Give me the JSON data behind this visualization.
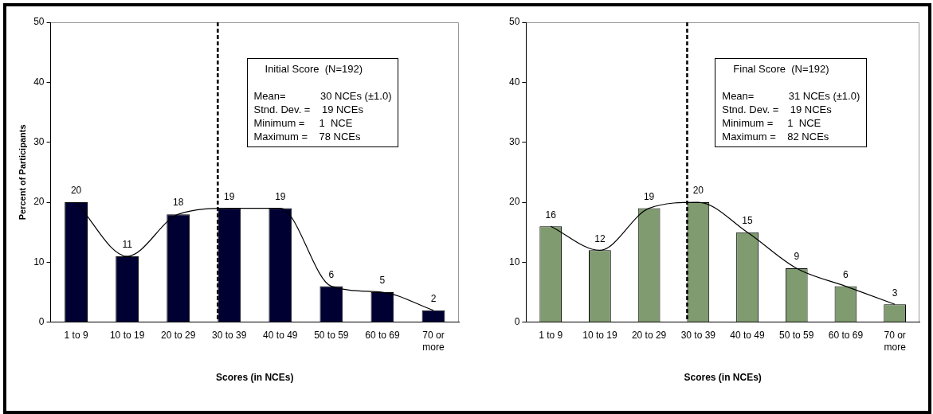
{
  "chart_data": [
    {
      "type": "bar",
      "categories": [
        "1 to 9",
        "10 to 19",
        "20 to 29",
        "30 to 39",
        "40 to 49",
        "50 to 59",
        "60 to 69",
        "70 or more"
      ],
      "series": [
        {
          "color": "#000033",
          "values": [
            20,
            11,
            18,
            19,
            19,
            6,
            5,
            2
          ],
          "value_labels": [
            "20",
            "11",
            "18",
            "19",
            "19",
            "6",
            "5",
            "2"
          ]
        },
        {
          "type": "line",
          "color": "#000000",
          "marker": "none",
          "values": [
            20,
            11,
            18,
            19,
            19,
            6,
            5,
            2
          ]
        }
      ],
      "xlabel": "Scores (in NCEs)",
      "ylabel": "Percent of Participants",
      "ylim": [
        0,
        50
      ],
      "yticks": [
        0,
        10,
        20,
        30,
        40,
        50
      ],
      "grid": false,
      "legend": false,
      "ref_lines": [
        {
          "axis": "x",
          "value": "30 to 39",
          "color": "#000000",
          "line_style": "dashed"
        }
      ],
      "annotations": [
        "Initial Score  (N=192)",
        "Mean=            30 NCEs (±1.0)",
        "Stnd. Dev. =    19 NCEs",
        "Minimum =     1  NCE",
        "Maximum =    78 NCEs"
      ]
    },
    {
      "type": "bar",
      "categories": [
        "1 to 9",
        "10 to 19",
        "20 to 29",
        "30 to 39",
        "40 to 49",
        "50 to 59",
        "60 to 69",
        "70 or more"
      ],
      "series": [
        {
          "color": "#7f9b6f",
          "values": [
            16,
            12,
            19,
            20,
            15,
            9,
            6,
            3
          ],
          "value_labels": [
            "16",
            "12",
            "19",
            "20",
            "15",
            "9",
            "6",
            "3"
          ]
        },
        {
          "type": "line",
          "color": "#000000",
          "marker": "none",
          "values": [
            16,
            12,
            19,
            20,
            15,
            9,
            6,
            3
          ]
        }
      ],
      "xlabel": "Scores (in NCEs)",
      "ylim": [
        0,
        50
      ],
      "yticks": [
        0,
        10,
        20,
        30,
        40,
        50
      ],
      "grid": false,
      "legend": false,
      "ref_lines": [
        {
          "axis": "x",
          "value": "30 to 39",
          "color": "#000000",
          "line_style": "dashed"
        }
      ],
      "annotations": [
        "Final Score  (N=192)",
        "Mean=            31 NCEs (±1.0)",
        "Stnd. Dev. =    19 NCEs",
        "Minimum =     1  NCE",
        "Maximum =    82 NCEs"
      ]
    }
  ]
}
